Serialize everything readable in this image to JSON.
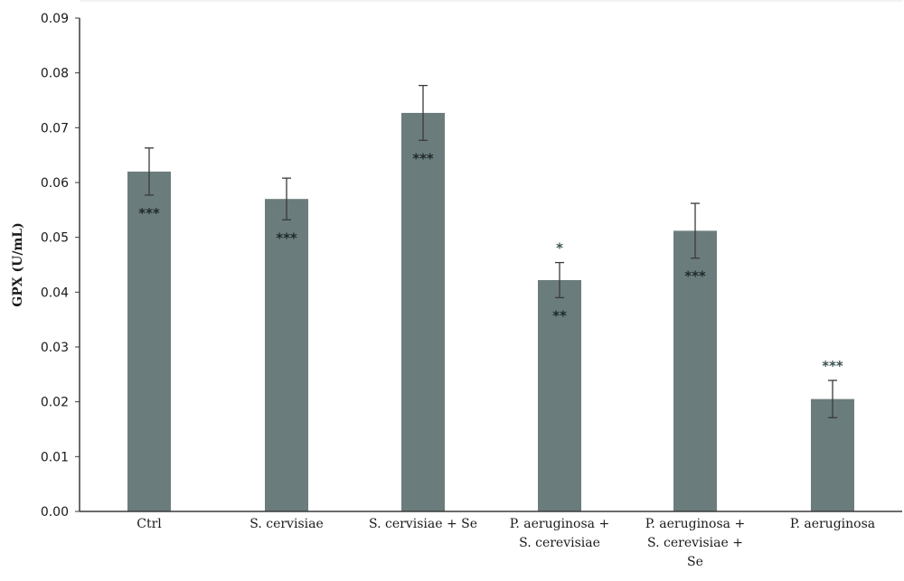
{
  "chart_data": {
    "type": "bar",
    "ylabel": "GPX (U/mL)",
    "ylim": [
      0,
      0.09
    ],
    "yticks": [
      "0.00",
      "0.01",
      "0.02",
      "0.03",
      "0.04",
      "0.05",
      "0.06",
      "0.07",
      "0.08",
      "0.09"
    ],
    "categories": [
      [
        "Ctrl"
      ],
      [
        "S. cervisiae"
      ],
      [
        "S. cervisiae + Se"
      ],
      [
        "P. aeruginosa +",
        "S. cerevisiae"
      ],
      [
        "P. aeruginosa +",
        "S. cerevisiae +",
        "Se"
      ],
      [
        "P. aeruginosa"
      ]
    ],
    "values": [
      0.062,
      0.057,
      0.0727,
      0.0422,
      0.0512,
      0.0205
    ],
    "errors": [
      0.0043,
      0.0038,
      0.005,
      0.0032,
      0.005,
      0.0034
    ],
    "significance_inside": [
      "***",
      "***",
      "***",
      "**",
      "***",
      ""
    ],
    "significance_above": [
      "",
      "",
      "",
      "*",
      "",
      "***"
    ],
    "grid": false,
    "colors": {
      "bar": "#6b7c7c",
      "axis": "#3a3a3a",
      "error_bar": "#3a3a3a"
    }
  }
}
